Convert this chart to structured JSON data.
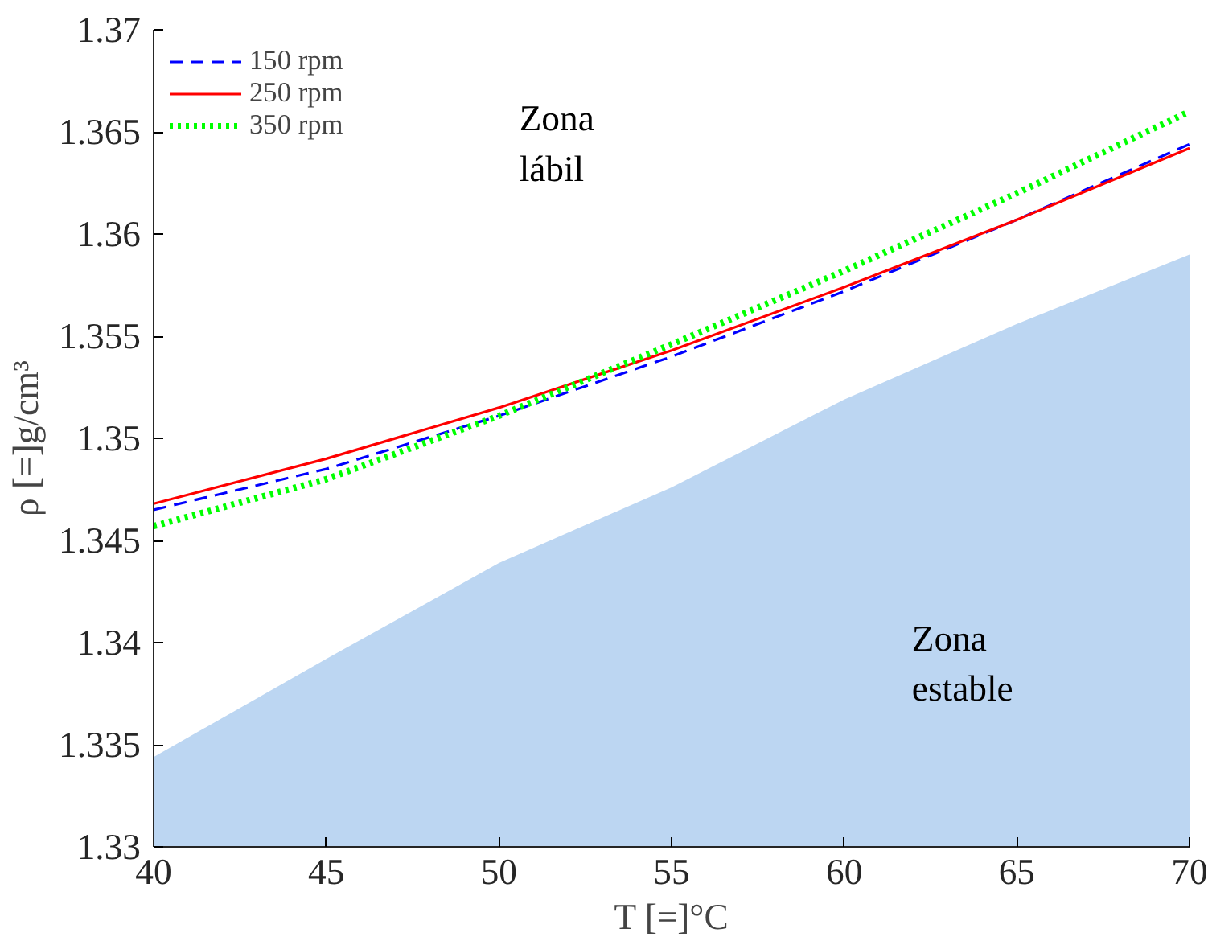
{
  "chart_data": {
    "type": "line",
    "xlabel": "T [=]°C",
    "ylabel": "ρ [=]g/cm³",
    "x": [
      40,
      45,
      50,
      55,
      60,
      65,
      70
    ],
    "series": [
      {
        "name": "150 rpm",
        "color": "#0000ff",
        "line_style": "dashed",
        "values": [
          1.3465,
          1.3485,
          1.3511,
          1.354,
          1.3572,
          1.3607,
          1.3644
        ]
      },
      {
        "name": "250 rpm",
        "color": "#ff0000",
        "line_style": "solid",
        "values": [
          1.3468,
          1.349,
          1.3515,
          1.3543,
          1.3574,
          1.3607,
          1.3642
        ]
      },
      {
        "name": "350 rpm",
        "color": "#00ff00",
        "line_style": "dotted",
        "values": [
          1.3457,
          1.348,
          1.3511,
          1.3546,
          1.3582,
          1.362,
          1.366
        ]
      },
      {
        "type": "area",
        "color": "#bcd6f2",
        "values": [
          1.3344,
          1.3392,
          1.3439,
          1.3476,
          1.3519,
          1.3556,
          1.359
        ]
      }
    ],
    "annotations": [
      "Zona\nlábil",
      "Zona\nestable"
    ],
    "xlim": [
      40,
      70
    ],
    "ylim": [
      1.33,
      1.37
    ],
    "xticks": [
      40,
      45,
      50,
      55,
      60,
      65,
      70
    ],
    "yticks": [
      1.33,
      1.335,
      1.34,
      1.345,
      1.35,
      1.355,
      1.36,
      1.365,
      1.37
    ],
    "legend": "top left",
    "grid": false
  }
}
